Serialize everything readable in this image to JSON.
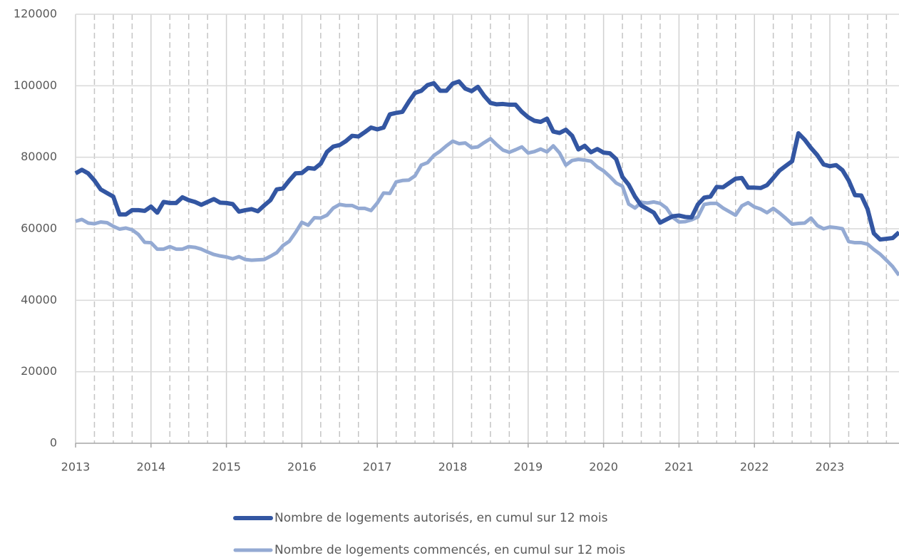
{
  "chart_data": {
    "type": "line",
    "categories": [
      "2013",
      null,
      null,
      null,
      null,
      null,
      null,
      null,
      null,
      null,
      null,
      null,
      "2014",
      null,
      null,
      null,
      null,
      null,
      null,
      null,
      null,
      null,
      null,
      null,
      "2015",
      null,
      null,
      null,
      null,
      null,
      null,
      null,
      null,
      null,
      null,
      null,
      "2016",
      null,
      null,
      null,
      null,
      null,
      null,
      null,
      null,
      null,
      null,
      null,
      "2017",
      null,
      null,
      null,
      null,
      null,
      null,
      null,
      null,
      null,
      null,
      null,
      "2018",
      null,
      null,
      null,
      null,
      null,
      null,
      null,
      null,
      null,
      null,
      null,
      "2019",
      null,
      null,
      null,
      null,
      null,
      null,
      null,
      null,
      null,
      null,
      null,
      "2020",
      null,
      null,
      null,
      null,
      null,
      null,
      null,
      null,
      null,
      null,
      null,
      "2021",
      null,
      null,
      null,
      null,
      null,
      null,
      null,
      null,
      null,
      null,
      null,
      "2022",
      null,
      null,
      null,
      null,
      null,
      null,
      null,
      null,
      null,
      null,
      null,
      "2023",
      null,
      null,
      null,
      null,
      null,
      null,
      null,
      null,
      null,
      null,
      null
    ],
    "series": [
      {
        "name": "Nombre de logements autorisés, en cumul sur 12 mois",
        "color": "#3356a2",
        "values": [
          75500,
          76500,
          75500,
          73500,
          71000,
          70000,
          69000,
          64000,
          64000,
          65200,
          65200,
          65000,
          66200,
          64500,
          67500,
          67200,
          67200,
          68800,
          68000,
          67500,
          66700,
          67500,
          68300,
          67300,
          67200,
          66900,
          64800,
          65200,
          65500,
          64900,
          66500,
          68000,
          71000,
          71300,
          73500,
          75500,
          75600,
          77000,
          76800,
          78200,
          81500,
          83000,
          83400,
          84500,
          86000,
          85800,
          87000,
          88300,
          87800,
          88300,
          92000,
          92400,
          92700,
          95500,
          98000,
          98600,
          100200,
          100700,
          98600,
          98600,
          100600,
          101200,
          99200,
          98500,
          99700,
          97200,
          95200,
          94800,
          94900,
          94700,
          94700,
          92700,
          91200,
          90200,
          89900,
          90800,
          87200,
          86800,
          87700,
          86000,
          82200,
          83200,
          81400,
          82300,
          81300,
          81100,
          79500,
          74500,
          72300,
          69000,
          66500,
          65500,
          64500,
          61700,
          62600,
          63500,
          63700,
          63300,
          63200,
          66800,
          68700,
          69000,
          71700,
          71600,
          72800,
          74000,
          74200,
          71500,
          71500,
          71400,
          72200,
          74200,
          76300,
          77600,
          78900,
          86700,
          84900,
          82600,
          80600,
          78000,
          77500,
          77800,
          76400,
          73500,
          69400,
          69300,
          65500,
          58700,
          57000,
          57200,
          57400,
          59000
        ]
      },
      {
        "name": "Nombre de logements commencés, en cumul sur 12 mois",
        "color": "#94aad3",
        "values": [
          62100,
          62600,
          61600,
          61400,
          61900,
          61700,
          60700,
          59900,
          60200,
          59700,
          58400,
          56200,
          56100,
          54300,
          54300,
          55000,
          54300,
          54300,
          55000,
          54800,
          54300,
          53500,
          52800,
          52400,
          52100,
          51600,
          52200,
          51400,
          51200,
          51300,
          51400,
          52300,
          53300,
          55300,
          56500,
          59000,
          61800,
          61000,
          63100,
          63000,
          63800,
          65800,
          66800,
          66500,
          66500,
          65700,
          65700,
          65100,
          67200,
          70000,
          69900,
          73100,
          73500,
          73600,
          74800,
          77800,
          78500,
          80500,
          81700,
          83200,
          84500,
          83800,
          84000,
          82700,
          82900,
          84100,
          85200,
          83500,
          82000,
          81400,
          82100,
          82900,
          81200,
          81600,
          82300,
          81500,
          83200,
          81200,
          77800,
          79100,
          79400,
          79200,
          78900,
          77300,
          76200,
          74600,
          72800,
          71900,
          66900,
          65800,
          67400,
          67200,
          67500,
          67100,
          65800,
          63200,
          61900,
          62000,
          62500,
          63300,
          66800,
          67100,
          67100,
          65800,
          64800,
          63800,
          66400,
          67300,
          66100,
          65500,
          64500,
          65700,
          64400,
          62900,
          61300,
          61500,
          61600,
          63000,
          60900,
          60000,
          60500,
          60300,
          60000,
          56400,
          56100,
          56100,
          55700,
          54200,
          52900,
          51200,
          49400,
          47000
        ]
      }
    ],
    "ylim": [
      0,
      120000
    ],
    "yticks": [
      0,
      20000,
      40000,
      60000,
      80000,
      100000,
      120000
    ],
    "grid": true
  }
}
